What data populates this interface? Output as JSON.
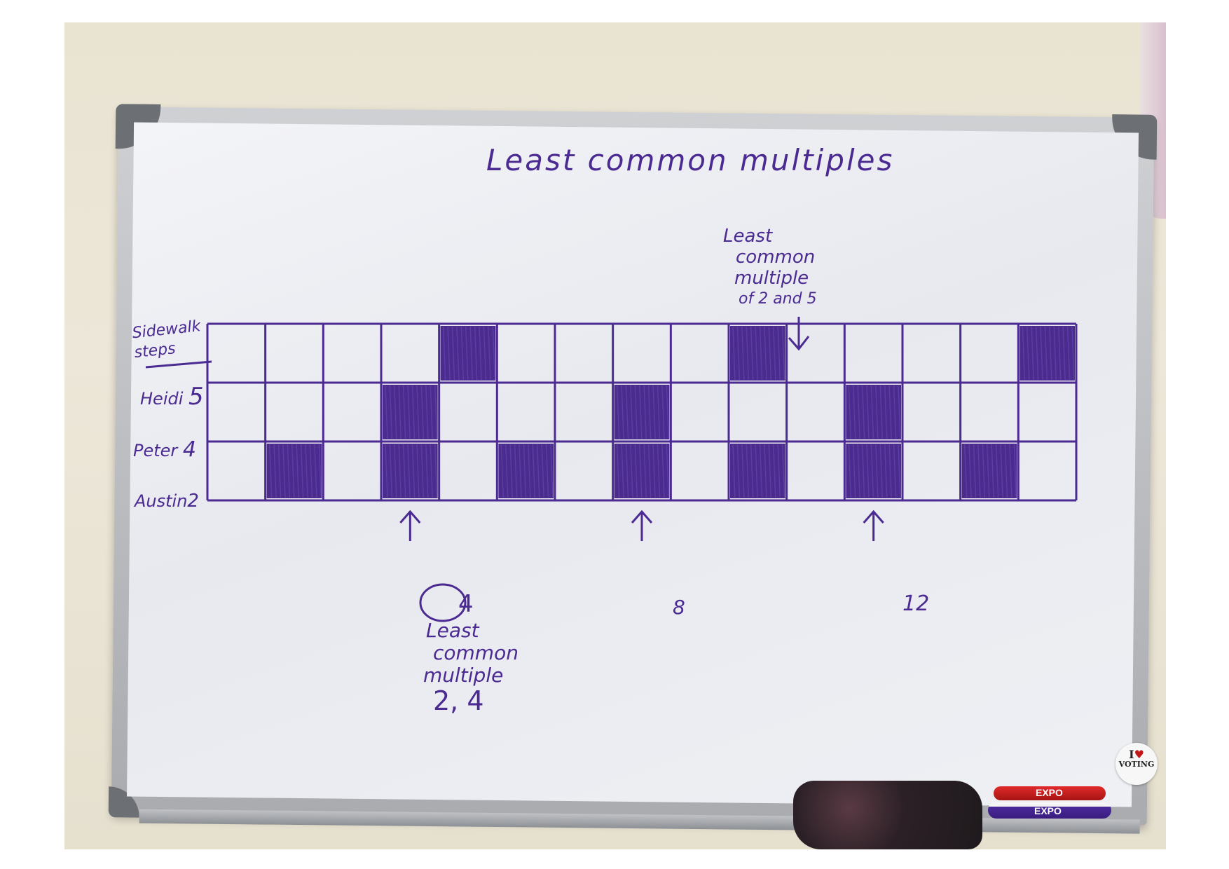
{
  "board": {
    "title": "Least common multiples",
    "header_label": "Sidewalk steps",
    "rows": [
      {
        "name": "Heidi",
        "step": "5",
        "filled": [
          5,
          10,
          15
        ]
      },
      {
        "name": "Peter",
        "step": "4",
        "filled": [
          4,
          8,
          12
        ]
      },
      {
        "name": "Austin",
        "step": "2",
        "filled": [
          2,
          4,
          6,
          8,
          10,
          12,
          14
        ]
      }
    ],
    "columns": 15,
    "top_note": [
      "Least",
      "common",
      "multiple",
      "of 2 and 5"
    ],
    "markers": [
      "4",
      "8",
      "12"
    ],
    "bottom_note": [
      "Least",
      "common",
      "multiple",
      "2, 4"
    ]
  },
  "sticker": {
    "line1": "I",
    "line2": "VOTING"
  },
  "markers_brand": "EXPO",
  "colors": {
    "ink": "#4b2a91",
    "fill": "#3d1b86"
  }
}
